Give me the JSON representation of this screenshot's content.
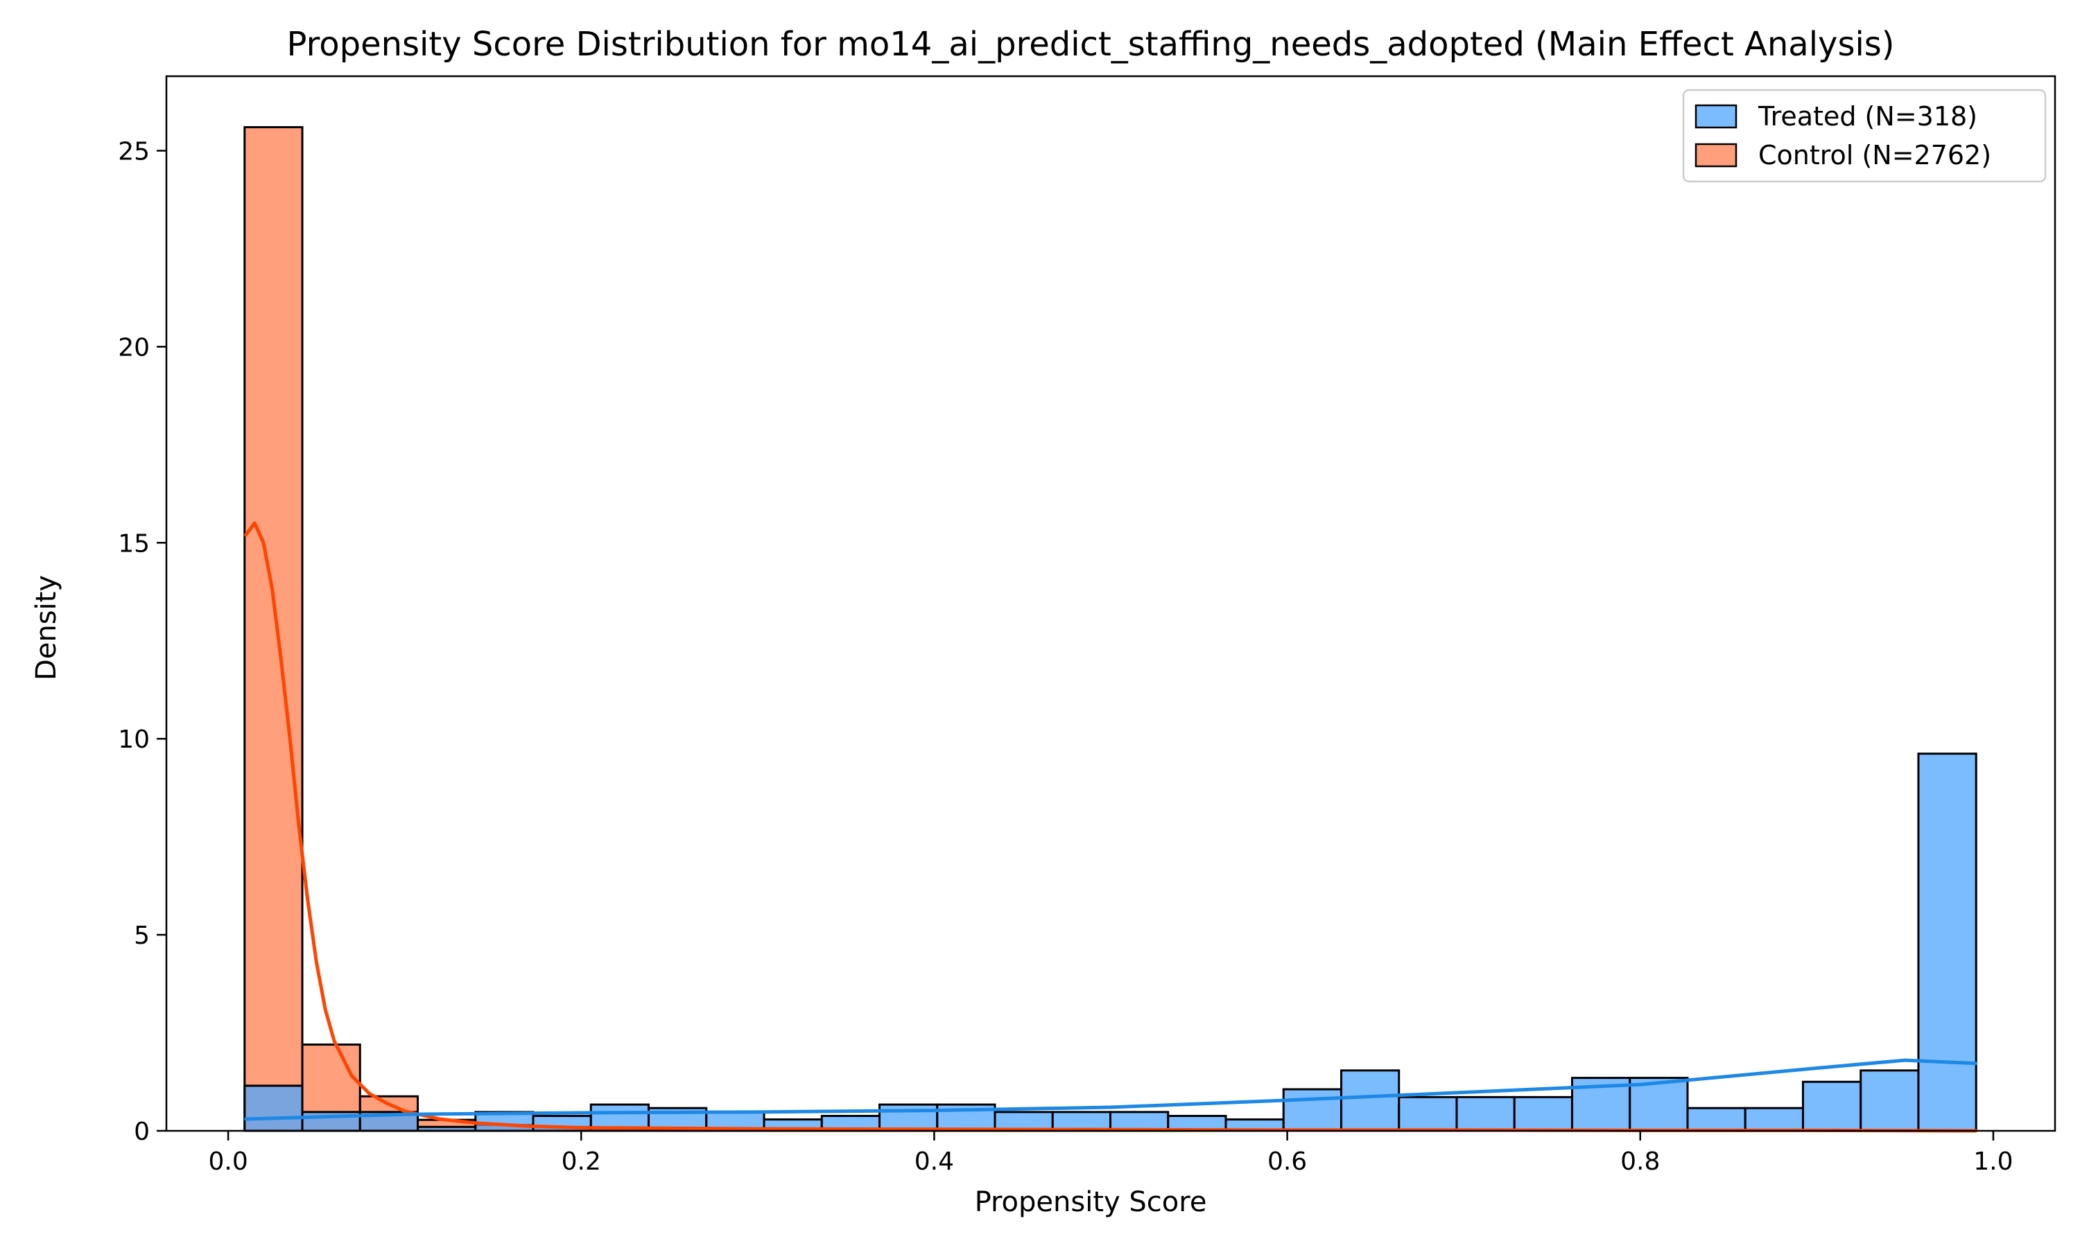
{
  "chart_data": {
    "type": "bar",
    "title": "Propensity Score Distribution for mo14_ai_predict_staffing_needs_adopted (Main Effect Analysis)",
    "xlabel": "Propensity Score",
    "ylabel": "Density",
    "xlim": [
      -0.035,
      1.035
    ],
    "ylim": [
      0,
      26.9
    ],
    "xticks": [
      0.0,
      0.2,
      0.4,
      0.6,
      0.8,
      1.0
    ],
    "xtick_labels": [
      "0.0",
      "0.2",
      "0.4",
      "0.6",
      "0.8",
      "1.0"
    ],
    "yticks": [
      0,
      5,
      10,
      15,
      20,
      25
    ],
    "ytick_labels": [
      "0",
      "5",
      "10",
      "15",
      "20",
      "25"
    ],
    "grid": false,
    "legend_position": "top-right",
    "bin_edges": [
      0.0093,
      0.042,
      0.0747,
      0.1074,
      0.1401,
      0.1728,
      0.2055,
      0.2382,
      0.2709,
      0.3036,
      0.3363,
      0.369,
      0.4017,
      0.4344,
      0.4671,
      0.4998,
      0.5325,
      0.5652,
      0.5979,
      0.6306,
      0.6633,
      0.696,
      0.7287,
      0.7614,
      0.7941,
      0.8268,
      0.8595,
      0.8922,
      0.9249,
      0.9576,
      0.9903
    ],
    "series": [
      {
        "name": "Treated (N=318)",
        "color": "#4da6ff",
        "kde_color": "#1e88e5",
        "values": [
          1.15,
          0.48,
          0.48,
          0.1,
          0.48,
          0.38,
          0.67,
          0.58,
          0.48,
          0.29,
          0.38,
          0.67,
          0.67,
          0.48,
          0.48,
          0.48,
          0.38,
          0.29,
          1.06,
          1.54,
          0.86,
          0.86,
          0.86,
          1.35,
          1.35,
          0.58,
          0.58,
          1.25,
          1.54,
          9.62
        ],
        "kde": {
          "x": [
            0.01,
            0.1,
            0.2,
            0.3,
            0.4,
            0.5,
            0.6,
            0.7,
            0.8,
            0.9,
            0.95,
            0.99
          ],
          "y": [
            0.3,
            0.42,
            0.46,
            0.48,
            0.52,
            0.6,
            0.78,
            0.98,
            1.18,
            1.6,
            1.8,
            1.72
          ]
        }
      },
      {
        "name": "Control (N=2762)",
        "color": "#ff7f50",
        "kde_color": "#ff4500",
        "values": [
          25.6,
          2.2,
          0.88,
          0.28,
          0.15,
          0.1,
          0.07,
          0.06,
          0.04,
          0.04,
          0.04,
          0.03,
          0.03,
          0.03,
          0.03,
          0.03,
          0.02,
          0.02,
          0.02,
          0.02,
          0.02,
          0.02,
          0.01,
          0.01,
          0.01,
          0.01,
          0.01,
          0.01,
          0.01,
          0.0
        ],
        "kde": {
          "x": [
            0.01,
            0.015,
            0.02,
            0.025,
            0.03,
            0.035,
            0.04,
            0.045,
            0.05,
            0.055,
            0.06,
            0.07,
            0.08,
            0.09,
            0.1,
            0.12,
            0.14,
            0.17,
            0.2,
            0.3,
            0.4,
            0.5,
            0.6,
            0.7,
            0.8,
            0.9,
            0.99
          ],
          "y": [
            15.2,
            15.5,
            15.0,
            13.8,
            12.0,
            10.0,
            7.8,
            5.9,
            4.3,
            3.1,
            2.3,
            1.4,
            0.95,
            0.7,
            0.5,
            0.3,
            0.2,
            0.12,
            0.08,
            0.05,
            0.04,
            0.03,
            0.02,
            0.02,
            0.01,
            0.01,
            0.0
          ]
        }
      }
    ]
  }
}
